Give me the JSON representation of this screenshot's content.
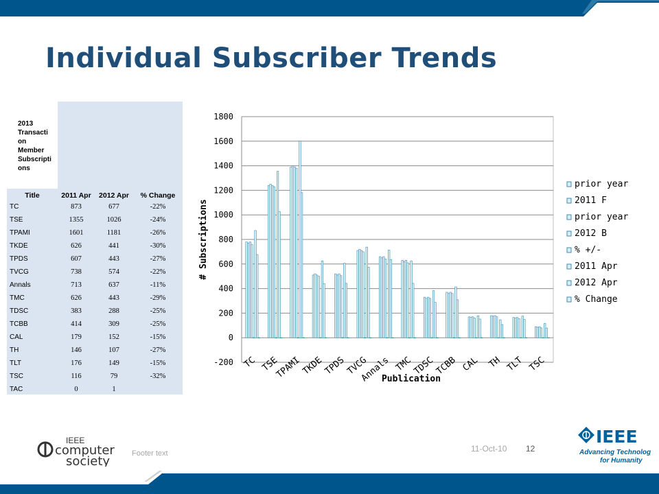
{
  "slide": {
    "title": "Individual Subscriber Trends",
    "footer_text": "Footer text",
    "date": "11-Oct-10",
    "page_number": "12"
  },
  "table": {
    "caption": "2013 Transaction Member Subscriptions",
    "caption_lines": [
      "2013",
      "Transacti",
      "on",
      "Member",
      "Subscripti",
      "ons"
    ],
    "headers": [
      "Title",
      "2011 Apr",
      "2012 Apr",
      "% Change"
    ],
    "rows": [
      [
        "TC",
        "873",
        "677",
        "-22%"
      ],
      [
        "TSE",
        "1355",
        "1026",
        "-24%"
      ],
      [
        "TPAMI",
        "1601",
        "1181",
        "-26%"
      ],
      [
        "TKDE",
        "626",
        "441",
        "-30%"
      ],
      [
        "TPDS",
        "607",
        "443",
        "-27%"
      ],
      [
        "TVCG",
        "738",
        "574",
        "-22%"
      ],
      [
        "Annals",
        "713",
        "637",
        "-11%"
      ],
      [
        "TMC",
        "626",
        "443",
        "-29%"
      ],
      [
        "TDSC",
        "383",
        "288",
        "-25%"
      ],
      [
        "TCBB",
        "414",
        "309",
        "-25%"
      ],
      [
        "CAL",
        "179",
        "152",
        "-15%"
      ],
      [
        "TH",
        "146",
        "107",
        "-27%"
      ],
      [
        "TLT",
        "176",
        "149",
        "-15%"
      ],
      [
        "TSC",
        "116",
        "79",
        "-32%"
      ],
      [
        "TAC",
        "0",
        "1",
        ""
      ]
    ]
  },
  "logos": {
    "computer_society": [
      "IEEE",
      "computer",
      "society"
    ],
    "ieee": [
      "IEEE",
      "Advancing Technology",
      "for Humanity"
    ]
  },
  "colors": {
    "title": "#1f4e79",
    "band": "#00558c",
    "table_bg": "#dbe5f1",
    "bar_fill": "#dbeef5",
    "bar_edge": "#3a8fad",
    "ieee_blue": "#00629b"
  },
  "chart_data": {
    "type": "bar",
    "title": "",
    "xlabel": "Publication",
    "ylabel": "# Subscriptions",
    "ylim": [
      -200,
      1800
    ],
    "yticks": [
      -200,
      0,
      200,
      400,
      600,
      800,
      1000,
      1200,
      1400,
      1600,
      1800
    ],
    "grid": true,
    "legend_position": "right",
    "categories": [
      "TC",
      "TSE",
      "TPAMI",
      "TKDE",
      "TPDS",
      "TVCG",
      "Annals",
      "TMC",
      "TDSC",
      "TCBB",
      "CAL",
      "TH",
      "TLT",
      "TSC"
    ],
    "series": [
      {
        "name": "prior year",
        "values": [
          780,
          1240,
          1390,
          510,
          520,
          710,
          660,
          630,
          330,
          370,
          170,
          180,
          165,
          90
        ]
      },
      {
        "name": "2011 F",
        "values": [
          770,
          1250,
          1400,
          520,
          510,
          720,
          650,
          620,
          320,
          360,
          165,
          175,
          160,
          85
        ]
      },
      {
        "name": "prior year",
        "values": [
          780,
          1240,
          1390,
          510,
          520,
          710,
          660,
          630,
          330,
          370,
          170,
          180,
          165,
          90
        ]
      },
      {
        "name": "2012 B",
        "values": [
          760,
          1230,
          1380,
          500,
          505,
          700,
          640,
          610,
          320,
          360,
          160,
          170,
          155,
          80
        ]
      },
      {
        "name": "% +/-",
        "values": [
          0,
          0,
          0,
          0,
          0,
          0,
          0,
          0,
          0,
          0,
          0,
          0,
          0,
          0
        ]
      },
      {
        "name": "2011 Apr",
        "values": [
          873,
          1355,
          1601,
          626,
          607,
          738,
          713,
          626,
          383,
          414,
          179,
          146,
          176,
          116
        ]
      },
      {
        "name": "2012 Apr",
        "values": [
          677,
          1026,
          1181,
          441,
          443,
          574,
          637,
          443,
          288,
          309,
          152,
          107,
          149,
          79
        ]
      },
      {
        "name": "% Change",
        "values": [
          0,
          0,
          0,
          0,
          0,
          0,
          0,
          0,
          0,
          0,
          0,
          0,
          0,
          0
        ]
      }
    ]
  }
}
